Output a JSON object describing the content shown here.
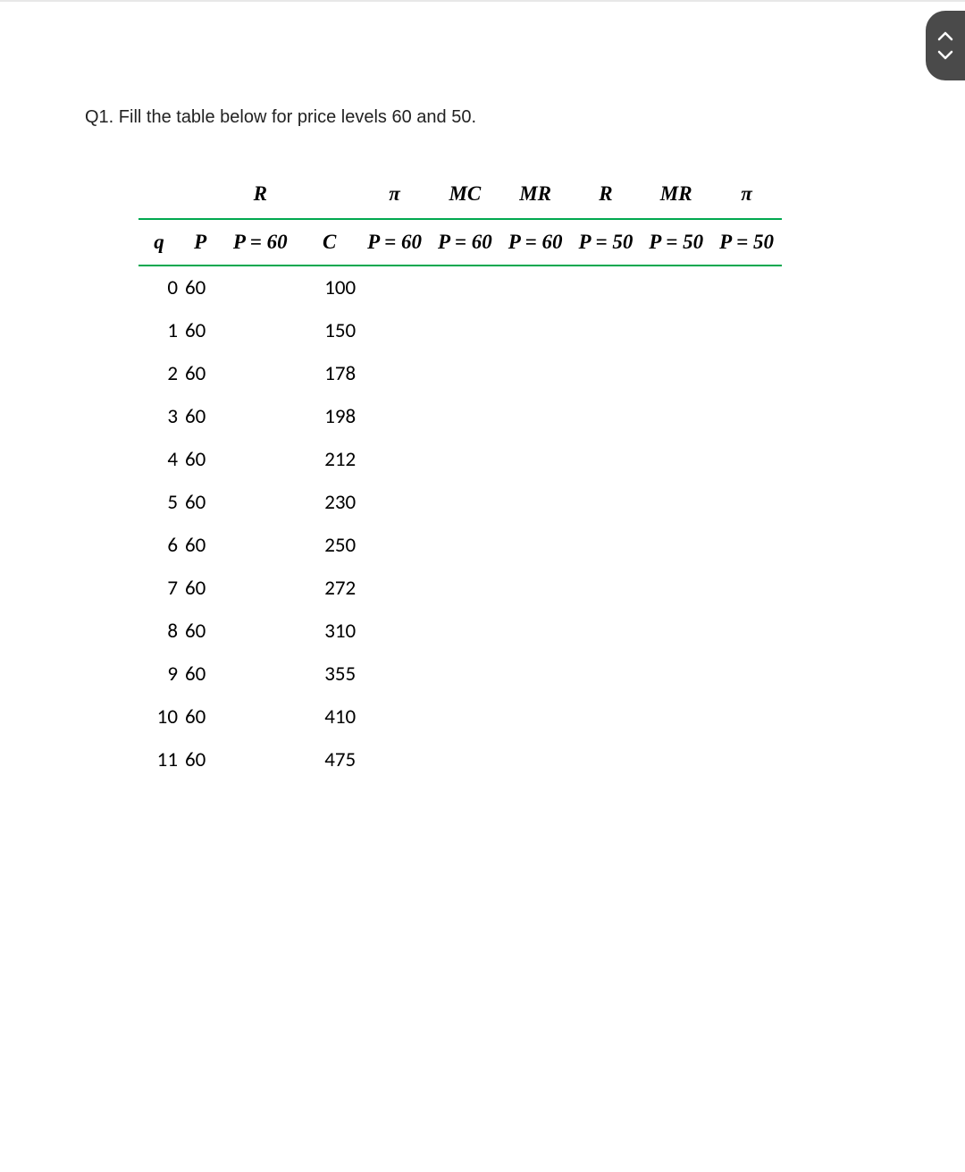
{
  "question": "Q1. Fill the table below for price levels 60 and 50.",
  "colors": {
    "rule": "#00a84f",
    "pill_bg": "#4a4a4a",
    "pill_fg": "#ffffff",
    "top_divider": "#e8e8e8",
    "text": "#000000",
    "page_bg": "#ffffff"
  },
  "table": {
    "header_row1": {
      "q": "",
      "P": "",
      "R60": "R",
      "C": "",
      "pi60": "π",
      "MC": "MC",
      "MR60": "MR",
      "R50": "R",
      "MR50": "MR",
      "pi50": "π"
    },
    "header_row2": {
      "q": "q",
      "P": "P",
      "R60": "P = 60",
      "C": "C",
      "pi60": "P = 60",
      "MC": "P = 60",
      "MR60": "P = 60",
      "R50": "P = 50",
      "MR50": "P = 50",
      "pi50": "P = 50"
    },
    "rows": [
      {
        "q": "0",
        "P": "60",
        "R60": "",
        "C": "100",
        "pi60": "",
        "MC": "",
        "MR60": "",
        "R50": "",
        "MR50": "",
        "pi50": ""
      },
      {
        "q": "1",
        "P": "60",
        "R60": "",
        "C": "150",
        "pi60": "",
        "MC": "",
        "MR60": "",
        "R50": "",
        "MR50": "",
        "pi50": ""
      },
      {
        "q": "2",
        "P": "60",
        "R60": "",
        "C": "178",
        "pi60": "",
        "MC": "",
        "MR60": "",
        "R50": "",
        "MR50": "",
        "pi50": ""
      },
      {
        "q": "3",
        "P": "60",
        "R60": "",
        "C": "198",
        "pi60": "",
        "MC": "",
        "MR60": "",
        "R50": "",
        "MR50": "",
        "pi50": ""
      },
      {
        "q": "4",
        "P": "60",
        "R60": "",
        "C": "212",
        "pi60": "",
        "MC": "",
        "MR60": "",
        "R50": "",
        "MR50": "",
        "pi50": ""
      },
      {
        "q": "5",
        "P": "60",
        "R60": "",
        "C": "230",
        "pi60": "",
        "MC": "",
        "MR60": "",
        "R50": "",
        "MR50": "",
        "pi50": ""
      },
      {
        "q": "6",
        "P": "60",
        "R60": "",
        "C": "250",
        "pi60": "",
        "MC": "",
        "MR60": "",
        "R50": "",
        "MR50": "",
        "pi50": ""
      },
      {
        "q": "7",
        "P": "60",
        "R60": "",
        "C": "272",
        "pi60": "",
        "MC": "",
        "MR60": "",
        "R50": "",
        "MR50": "",
        "pi50": ""
      },
      {
        "q": "8",
        "P": "60",
        "R60": "",
        "C": "310",
        "pi60": "",
        "MC": "",
        "MR60": "",
        "R50": "",
        "MR50": "",
        "pi50": ""
      },
      {
        "q": "9",
        "P": "60",
        "R60": "",
        "C": "355",
        "pi60": "",
        "MC": "",
        "MR60": "",
        "R50": "",
        "MR50": "",
        "pi50": ""
      },
      {
        "q": "10",
        "P": "60",
        "R60": "",
        "C": "410",
        "pi60": "",
        "MC": "",
        "MR60": "",
        "R50": "",
        "MR50": "",
        "pi50": ""
      },
      {
        "q": "11",
        "P": "60",
        "R60": "",
        "C": "475",
        "pi60": "",
        "MC": "",
        "MR60": "",
        "R50": "",
        "MR50": "",
        "pi50": ""
      }
    ]
  }
}
